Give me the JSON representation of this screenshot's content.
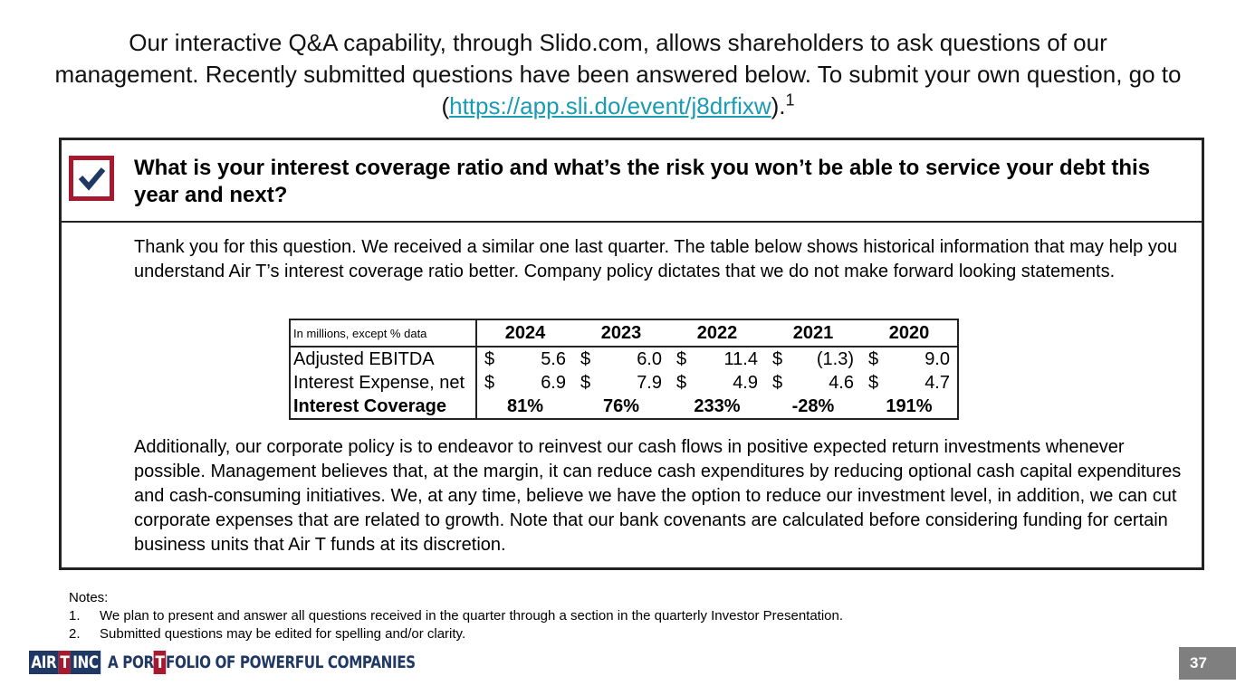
{
  "header": {
    "intro": "Our interactive Q&A capability, through Slido.com, allows shareholders to ask questions of our management. Recently submitted questions have been answered below. To submit your own question, go to (",
    "link": "https://app.sli.do/event/j8drfixw",
    "closing": ").",
    "footnote_marker": "1"
  },
  "question": "What is your interest coverage ratio and what’s the risk you won’t be able to service your debt this year and next?",
  "answer_intro": "Thank you for this question.  We received a similar one last quarter. The table below shows historical information that may help you understand Air T’s interest coverage ratio better. Company policy dictates that we do not make forward looking statements.",
  "table": {
    "caption": "In millions, except % data",
    "columns": [
      "2024",
      "2023",
      "2022",
      "2021",
      "2020"
    ],
    "rows": [
      {
        "label": "Adjusted EBITDA",
        "currency": "$",
        "values": [
          "5.6",
          "6.0",
          "11.4",
          "(1.3)",
          "9.0"
        ]
      },
      {
        "label": "Interest Expense, net",
        "currency": "$",
        "values": [
          "6.9",
          "7.9",
          "4.9",
          "4.6",
          "4.7"
        ]
      },
      {
        "label": "Interest Coverage",
        "values": [
          "81%",
          "76%",
          "233%",
          "-28%",
          "191%"
        ]
      }
    ]
  },
  "answer_followup": "Additionally, our corporate policy is to endeavor to reinvest our cash flows in positive expected return investments whenever possible.  Management believes that, at the margin, it can reduce cash expenditures by reducing optional cash capital expenditures and cash-consuming initiatives. We, at any time, believe we have the option to reduce our investment level, in addition, we can cut corporate expenses that are related to growth. Note that our bank covenants are calculated before considering funding for certain business units that Air T funds at its discretion.",
  "notes": {
    "title": "Notes:",
    "items": [
      {
        "marker": "1.",
        "text": "We plan to present and answer all questions received in the quarter through a section in the quarterly Investor Presentation."
      },
      {
        "marker": "2.",
        "text": "Submitted questions may be edited for spelling and/or clarity."
      }
    ]
  },
  "logo": {
    "part1": "AIR",
    "part2": "T",
    "part3": "INC",
    "part4": "A POR",
    "part5": "T",
    "part6": "FOLIO OF POWERFUL COMPANIES"
  },
  "page_number": "37"
}
